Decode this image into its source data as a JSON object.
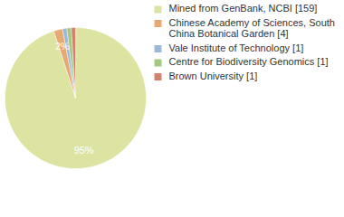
{
  "chart_data": {
    "type": "pie",
    "categories": [
      "Mined from GenBank, NCBI [159]",
      "Chinese Academy of Sciences, South China Botanical Garden [4]",
      "Vale Institute of Technology [1]",
      "Centre for Biodiversity Genomics [1]",
      "Brown University [1]"
    ],
    "values": [
      95,
      2,
      1,
      1,
      1
    ],
    "value_labels": [
      "95%",
      "2%",
      null,
      null,
      null
    ],
    "colors": [
      "#dde3a1",
      "#e8a873",
      "#9db9d9",
      "#a3c97e",
      "#d5826c"
    ],
    "data_labels": true,
    "legend": "right"
  }
}
